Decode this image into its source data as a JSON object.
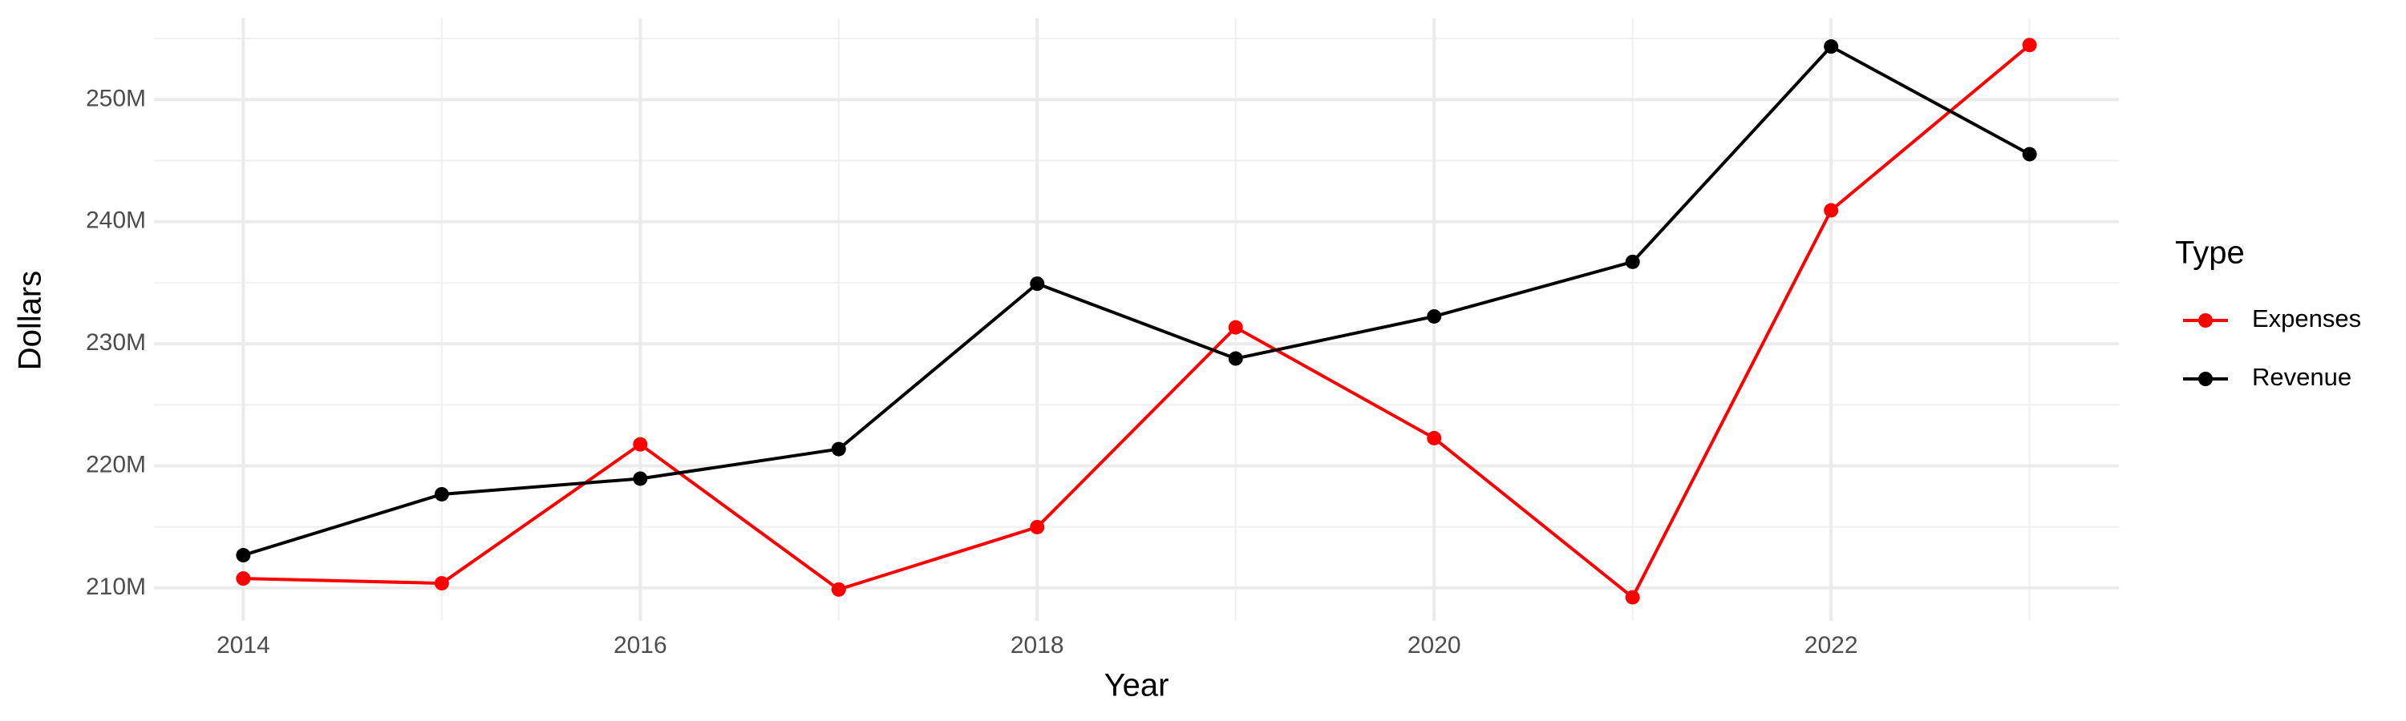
{
  "chart_data": {
    "type": "line",
    "x_label": "Year",
    "y_label": "Dollars",
    "legend_title": "Type",
    "legend": "right",
    "grid": true,
    "x": [
      2014,
      2015,
      2016,
      2017,
      2018,
      2019,
      2020,
      2021,
      2022,
      2023
    ],
    "series": [
      {
        "name": "Expenses",
        "color": "#ff0000",
        "values": [
          210770000,
          210380000,
          221760000,
          209870000,
          214980000,
          231340000,
          222270000,
          209230000,
          240930000,
          254470000
        ]
      },
      {
        "name": "Revenue",
        "color": "#000000",
        "values": [
          212680000,
          217670000,
          218950000,
          221370000,
          234920000,
          228790000,
          232240000,
          236710000,
          254350000,
          245530000
        ]
      }
    ],
    "xlim": [
      2013.55,
      2023.45
    ],
    "xticks": [
      2014,
      2016,
      2018,
      2020,
      2022
    ],
    "ylim": [
      207300000,
      256650000
    ],
    "yticks": [
      {
        "value": 210000000,
        "label": "210M"
      },
      {
        "value": 220000000,
        "label": "220M"
      },
      {
        "value": 230000000,
        "label": "230M"
      },
      {
        "value": 240000000,
        "label": "240M"
      },
      {
        "value": 250000000,
        "label": "250M"
      }
    ]
  }
}
